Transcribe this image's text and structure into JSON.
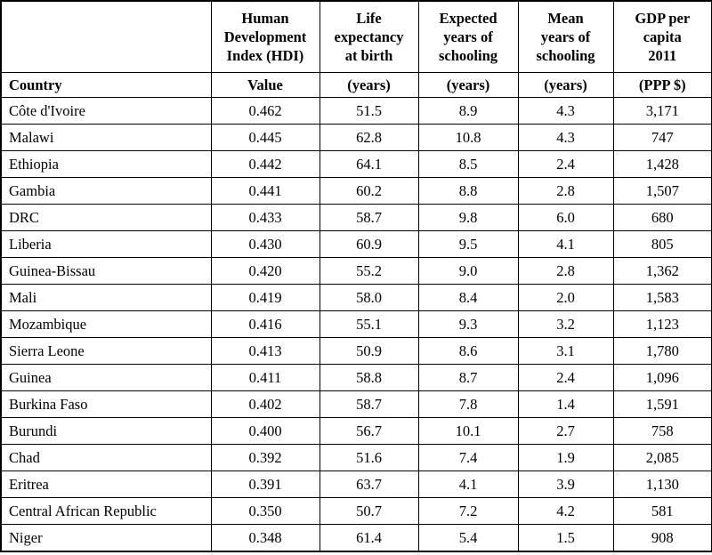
{
  "table": {
    "headers": [
      "",
      "Human Development Index (HDI)",
      "Life expectancy at birth",
      "Expected years of schooling",
      "Mean years of schooling",
      "GDP per capita 2011"
    ],
    "header_lines": [
      [],
      [
        "Human",
        "Development",
        "Index (HDI)"
      ],
      [
        "Life",
        "expectancy",
        "at birth"
      ],
      [
        "Expected",
        "years of",
        "schooling"
      ],
      [
        "Mean",
        "years of",
        "schooling"
      ],
      [
        "GDP per",
        "capita",
        "2011"
      ]
    ],
    "units": [
      "Country",
      "Value",
      "(years)",
      "(years)",
      "(years)",
      "(PPP $)"
    ],
    "rows": [
      [
        "Côte d'Ivoire",
        "0.462",
        "51.5",
        "8.9",
        "4.3",
        "3,171"
      ],
      [
        "Malawi",
        "0.445",
        "62.8",
        "10.8",
        "4.3",
        "747"
      ],
      [
        "Ethiopia",
        "0.442",
        "64.1",
        "8.5",
        "2.4",
        "1,428"
      ],
      [
        "Gambia",
        "0.441",
        "60.2",
        "8.8",
        "2.8",
        "1,507"
      ],
      [
        "DRC",
        "0.433",
        "58.7",
        "9.8",
        "6.0",
        "680"
      ],
      [
        "Liberia",
        "0.430",
        "60.9",
        "9.5",
        "4.1",
        "805"
      ],
      [
        "Guinea-Bissau",
        "0.420",
        "55.2",
        "9.0",
        "2.8",
        "1,362"
      ],
      [
        "Mali",
        "0.419",
        "58.0",
        "8.4",
        "2.0",
        "1,583"
      ],
      [
        "Mozambique",
        "0.416",
        "55.1",
        "9.3",
        "3.2",
        "1,123"
      ],
      [
        "Sierra Leone",
        "0.413",
        "50.9",
        "8.6",
        "3.1",
        "1,780"
      ],
      [
        "Guinea",
        "0.411",
        "58.8",
        "8.7",
        "2.4",
        "1,096"
      ],
      [
        "Burkina Faso",
        "0.402",
        "58.7",
        "7.8",
        "1.4",
        "1,591"
      ],
      [
        "Burundi",
        "0.400",
        "56.7",
        "10.1",
        "2.7",
        "758"
      ],
      [
        "Chad",
        "0.392",
        "51.6",
        "7.4",
        "1.9",
        "2,085"
      ],
      [
        "Eritrea",
        "0.391",
        "63.7",
        "4.1",
        "3.9",
        "1,130"
      ],
      [
        "Central African Republic",
        "0.350",
        "50.7",
        "7.2",
        "4.2",
        "581"
      ],
      [
        "Niger",
        "0.348",
        "61.4",
        "5.4",
        "1.5",
        "908"
      ]
    ]
  }
}
